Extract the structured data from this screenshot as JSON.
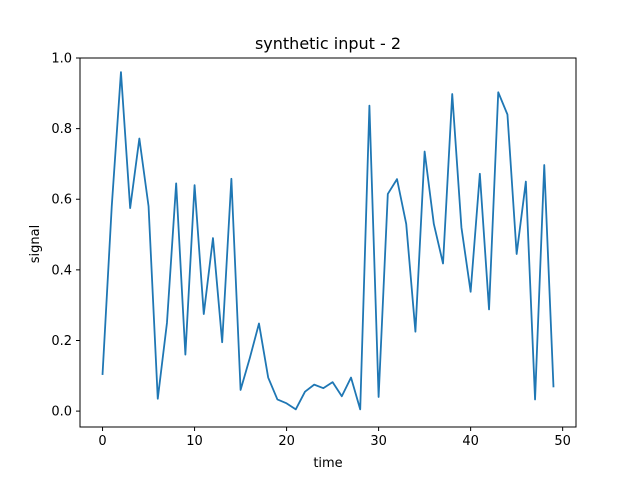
{
  "chart_data": {
    "type": "line",
    "title": "synthetic input - 2",
    "xlabel": "time",
    "ylabel": "signal",
    "xlim": [
      -2.45,
      51.45
    ],
    "ylim": [
      -0.045,
      1.0
    ],
    "xticks": [
      0,
      10,
      20,
      30,
      40,
      50
    ],
    "xtick_labels": [
      "0",
      "10",
      "20",
      "30",
      "40",
      "50"
    ],
    "yticks": [
      0.0,
      0.2,
      0.4,
      0.6,
      0.8,
      1.0
    ],
    "ytick_labels": [
      "0.0",
      "0.2",
      "0.4",
      "0.6",
      "0.8",
      "1.0"
    ],
    "grid": false,
    "color": "#1f77b4",
    "x": [
      0,
      1,
      2,
      3,
      4,
      5,
      6,
      7,
      8,
      9,
      10,
      11,
      12,
      13,
      14,
      15,
      16,
      17,
      18,
      19,
      20,
      21,
      22,
      23,
      24,
      25,
      26,
      27,
      28,
      29,
      30,
      31,
      32,
      33,
      34,
      35,
      36,
      37,
      38,
      39,
      40,
      41,
      42,
      43,
      44,
      45,
      46,
      47,
      48,
      49
    ],
    "series": [
      {
        "values": [
          0.105,
          0.58,
          0.96,
          0.575,
          0.772,
          0.58,
          0.035,
          0.25,
          0.645,
          0.16,
          0.64,
          0.275,
          0.49,
          0.195,
          0.658,
          0.06,
          0.15,
          0.248,
          0.095,
          0.033,
          0.022,
          0.005,
          0.055,
          0.075,
          0.065,
          0.082,
          0.042,
          0.095,
          0.005,
          0.865,
          0.04,
          0.615,
          0.657,
          0.53,
          0.225,
          0.735,
          0.53,
          0.418,
          0.898,
          0.52,
          0.338,
          0.672,
          0.288,
          0.903,
          0.84,
          0.445,
          0.65,
          0.033,
          0.697,
          0.07
        ]
      }
    ]
  }
}
